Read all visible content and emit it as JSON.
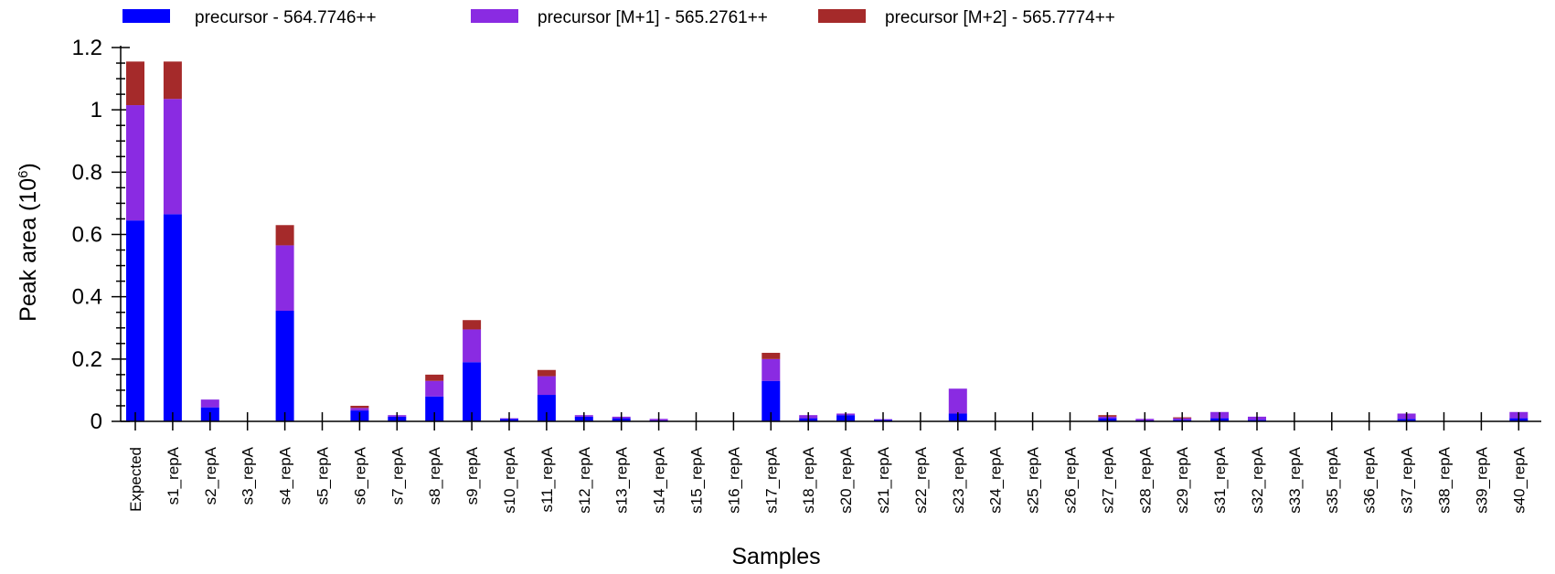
{
  "chart_data": {
    "type": "bar",
    "stacked": true,
    "xlabel": "Samples",
    "ylabel_main": "Peak area (10",
    "ylabel_exp": "6",
    "ylabel_close": ")",
    "ylim": [
      0,
      1.2
    ],
    "yticks": [
      0,
      0.2,
      0.4,
      0.6,
      0.8,
      1,
      1.2
    ],
    "ytick_labels": [
      "0",
      "0.2",
      "0.4",
      "0.6",
      "0.8",
      "1",
      "1.2"
    ],
    "legend_position": "top",
    "categories": [
      "Expected",
      "s1_repA",
      "s2_repA",
      "s3_repA",
      "s4_repA",
      "s5_repA",
      "s6_repA",
      "s7_repA",
      "s8_repA",
      "s9_repA",
      "s10_repA",
      "s11_repA",
      "s12_repA",
      "s13_repA",
      "s14_repA",
      "s15_repA",
      "s16_repA",
      "s17_repA",
      "s18_repA",
      "s20_repA",
      "s21_repA",
      "s22_repA",
      "s23_repA",
      "s24_repA",
      "s25_repA",
      "s26_repA",
      "s27_repA",
      "s28_repA",
      "s29_repA",
      "s31_repA",
      "s32_repA",
      "s33_repA",
      "s35_repA",
      "s36_repA",
      "s37_repA",
      "s38_repA",
      "s39_repA",
      "s40_repA"
    ],
    "series": [
      {
        "name": "precursor - 564.7746++",
        "color": "#0000ff",
        "values": [
          0.645,
          0.665,
          0.045,
          0,
          0.355,
          0,
          0.035,
          0.015,
          0.08,
          0.19,
          0.008,
          0.085,
          0.015,
          0.01,
          0.003,
          0,
          0,
          0.13,
          0.01,
          0.02,
          0.005,
          0,
          0.025,
          0,
          0,
          0,
          0.01,
          0.003,
          0.005,
          0.01,
          0.005,
          0,
          0,
          0,
          0.008,
          0,
          0,
          0.01
        ]
      },
      {
        "name": "precursor [M+1] - 565.2761++",
        "color": "#8a2be2",
        "values": [
          0.37,
          0.37,
          0.025,
          0,
          0.21,
          0,
          0.008,
          0.005,
          0.05,
          0.105,
          0.002,
          0.06,
          0.005,
          0.005,
          0.005,
          0,
          0,
          0.07,
          0.01,
          0.005,
          0.002,
          0,
          0.08,
          0,
          0,
          0,
          0.005,
          0.005,
          0.005,
          0.02,
          0.01,
          0,
          0,
          0,
          0.017,
          0,
          0,
          0.02
        ]
      },
      {
        "name": "precursor [M+2] - 565.7774++",
        "color": "#a52a2a",
        "values": [
          0.14,
          0.12,
          0,
          0,
          0.065,
          0,
          0.007,
          0,
          0.02,
          0.03,
          0,
          0.02,
          0,
          0,
          0,
          0,
          0,
          0.02,
          0,
          0,
          0,
          0,
          0,
          0,
          0,
          0,
          0.005,
          0,
          0.003,
          0,
          0,
          0,
          0,
          0,
          0,
          0,
          0,
          0
        ]
      }
    ]
  }
}
